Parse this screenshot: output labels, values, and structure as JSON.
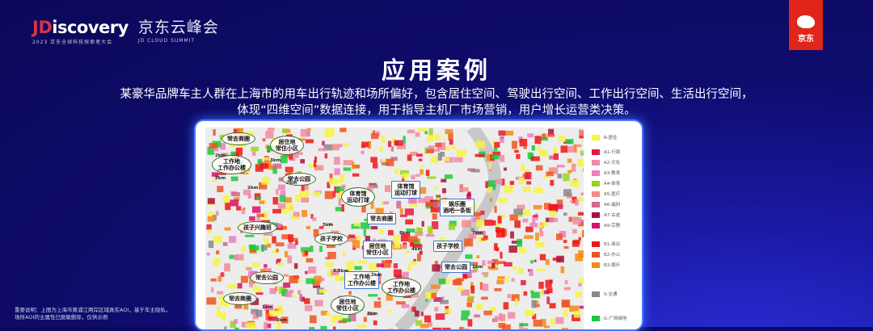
{
  "header": {
    "logo_jd": "JD",
    "logo_rest": "iscovery",
    "logo_sub": "2023 京东全球科技探索者大会",
    "event_cn": "京东云峰会",
    "event_en": "JD CLOUD SUMMIT",
    "badge": "京东",
    "brand_color": "#e1251b"
  },
  "title": "应用案例",
  "description": [
    "某豪华品牌车主人群在上海市的用车出行轨迹和场所偏好，包含居住空间、驾驶出行空间、工作出行空间、生活出行空间，",
    "体现“四维空间”数据连接，用于指导主机厂市场营销，用户增长运营类决策。"
  ],
  "map": {
    "callouts": [
      {
        "lines": [
          "常去商圈"
        ],
        "style": "g"
      },
      {
        "lines": [
          "居住地",
          "常住小区"
        ],
        "style": "g"
      },
      {
        "lines": [
          "工作地",
          "工作办公楼"
        ],
        "style": "g"
      },
      {
        "lines": [
          "常去公园"
        ],
        "style": "g"
      },
      {
        "lines": [
          "体育馆",
          "运动打球"
        ],
        "style": "g"
      },
      {
        "lines": [
          "体育馆",
          "运动打球"
        ],
        "style": "b"
      },
      {
        "lines": [
          "常去商圈"
        ],
        "style": "b"
      },
      {
        "lines": [
          "娱乐圈",
          "酒吧一条街"
        ],
        "style": "b"
      },
      {
        "lines": [
          "孩子兴趣班"
        ],
        "style": "g"
      },
      {
        "lines": [
          "孩子学校"
        ],
        "style": "g"
      },
      {
        "lines": [
          "居住地",
          "常住小区"
        ],
        "style": "b"
      },
      {
        "lines": [
          "孩子学校"
        ],
        "style": "b"
      },
      {
        "lines": [
          "常去公园"
        ],
        "style": "b"
      },
      {
        "lines": [
          "工作地",
          "工作办公楼"
        ],
        "style": "b"
      },
      {
        "lines": [
          "工作地",
          "工作办公楼"
        ],
        "style": "g"
      },
      {
        "lines": [
          "常去公园"
        ],
        "style": "g"
      },
      {
        "lines": [
          "常去商圈"
        ],
        "style": "g"
      },
      {
        "lines": [
          "居住地",
          "常住小区"
        ],
        "style": "g"
      }
    ],
    "distances": [
      "2km",
      "3km",
      "2km",
      "2km",
      "2km",
      "5km",
      "8km",
      "3.5km",
      "7km",
      "1km",
      "3km",
      "2km",
      "4km",
      "1km",
      "3km"
    ]
  },
  "legend": [
    {
      "label": "R-居住",
      "color": "#f5f542"
    },
    {
      "label": "A1-行政",
      "color": "#e8163c"
    },
    {
      "label": "A2-文化",
      "color": "#f08aa6"
    },
    {
      "label": "A3-教育",
      "color": "#f07cc0"
    },
    {
      "label": "A4-体育",
      "color": "#9ad21e"
    },
    {
      "label": "A5-医疗",
      "color": "#f58a8a"
    },
    {
      "label": "A6-福利",
      "color": "#d06a8a"
    },
    {
      "label": "A7-古迹",
      "color": "#a8123a"
    },
    {
      "label": "A9-宗教",
      "color": "#d8106a"
    },
    {
      "label": "B1-商业",
      "color": "#f01414"
    },
    {
      "label": "B2-办公",
      "color": "#f0541e"
    },
    {
      "label": "B3-娱乐",
      "color": "#f58a14"
    },
    {
      "label": "S-交通",
      "color": "#888888"
    },
    {
      "label": "G-广场绿地",
      "color": "#1ec83c"
    }
  ],
  "note": [
    "重要说明：上图为上海市黄浦江两岸区域真实AOI，基于车主隐私，",
    "场所AOI的主属性已脱敏删除，仅供示例"
  ]
}
